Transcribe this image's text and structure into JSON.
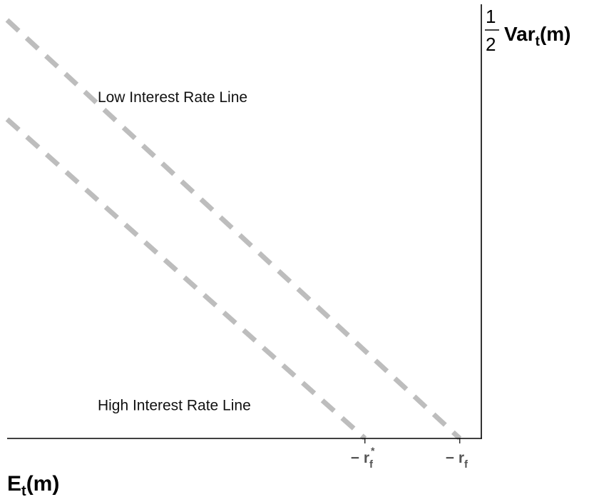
{
  "chart_data": {
    "type": "line",
    "title": "",
    "xlabel": {
      "main": "E",
      "sub": "t",
      "tail": "(m)"
    },
    "ylabel": {
      "frac_num": "1",
      "frac_den": "2",
      "main": "Var",
      "sub": "t",
      "tail": "(m)"
    },
    "x_ticks": [
      {
        "x": 0.78,
        "prefix": "− r",
        "sub": "f",
        "sup": "*"
      },
      {
        "x": 1.0,
        "prefix": "− r",
        "sub": "f",
        "sup": ""
      }
    ],
    "xlim": [
      -0.05,
      1.05
    ],
    "ylim": [
      0,
      1.0
    ],
    "grid": false,
    "series": [
      {
        "x": [
          -0.05,
          1.0
        ],
        "y": [
          0.97,
          0.0
        ],
        "color": "#bdbdbd",
        "style": "dashed"
      },
      {
        "x": [
          -0.05,
          0.78
        ],
        "y": [
          0.74,
          0.0
        ],
        "color": "#bdbdbd",
        "style": "dashed"
      }
    ],
    "annotations": [
      {
        "text": "Low Interest Rate Line",
        "x": 0.16,
        "y": 0.78
      },
      {
        "text": "High Interest Rate Line",
        "x": 0.16,
        "y": 0.065
      }
    ]
  }
}
